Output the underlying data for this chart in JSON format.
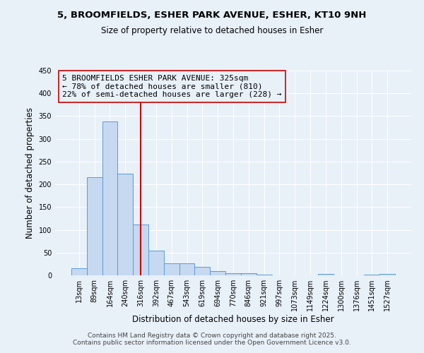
{
  "title1": "5, BROOMFIELDS, ESHER PARK AVENUE, ESHER, KT10 9NH",
  "title2": "Size of property relative to detached houses in Esher",
  "xlabel": "Distribution of detached houses by size in Esher",
  "ylabel": "Number of detached properties",
  "bar_labels": [
    "13sqm",
    "89sqm",
    "164sqm",
    "240sqm",
    "316sqm",
    "392sqm",
    "467sqm",
    "543sqm",
    "619sqm",
    "694sqm",
    "770sqm",
    "846sqm",
    "921sqm",
    "997sqm",
    "1073sqm",
    "1149sqm",
    "1224sqm",
    "1300sqm",
    "1376sqm",
    "1451sqm",
    "1527sqm"
  ],
  "bar_values": [
    15,
    216,
    338,
    223,
    112,
    54,
    27,
    26,
    19,
    9,
    5,
    4,
    1,
    0,
    0,
    0,
    3,
    0,
    0,
    2,
    3
  ],
  "bar_color": "#c6d9f0",
  "bar_edge_color": "#5b9bd5",
  "vline_x": 4.0,
  "vline_color": "#cc0000",
  "annotation_text": "5 BROOMFIELDS ESHER PARK AVENUE: 325sqm\n← 78% of detached houses are smaller (810)\n22% of semi-detached houses are larger (228) →",
  "annotation_box_edge": "#cc0000",
  "ylim": [
    0,
    450
  ],
  "yticks": [
    0,
    50,
    100,
    150,
    200,
    250,
    300,
    350,
    400,
    450
  ],
  "bg_color": "#e8f0f8",
  "grid_color": "#ffffff",
  "footnote": "Contains HM Land Registry data © Crown copyright and database right 2025.\nContains public sector information licensed under the Open Government Licence v3.0."
}
